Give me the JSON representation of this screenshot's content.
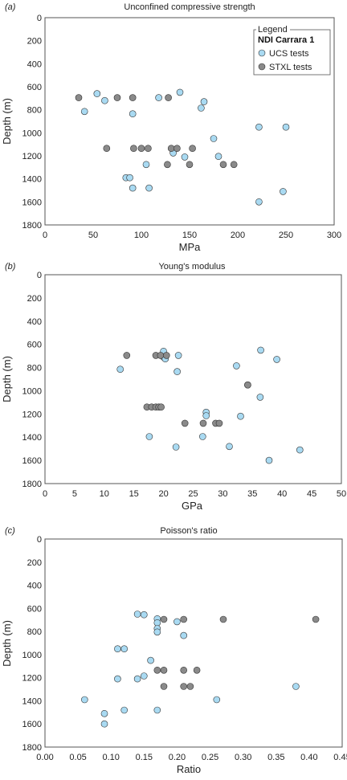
{
  "legend": {
    "title": "Legend",
    "heading": "NDI Carrara 1",
    "items": [
      {
        "label": "UCS tests",
        "color": "#a9daf2"
      },
      {
        "label": "STXL tests",
        "color": "#8a8a8a"
      }
    ]
  },
  "chart_data": [
    {
      "type": "scatter",
      "panel_label": "(a)",
      "title": "Unconfined compressive strength",
      "xlabel": "MPa",
      "ylabel": "Depth (m)",
      "xlim": [
        0,
        300
      ],
      "ylim": [
        0,
        1800
      ],
      "y_inverted": true,
      "xticks": [
        "0",
        "50",
        "100",
        "150",
        "200",
        "250",
        "300"
      ],
      "yticks": [
        "0",
        "200",
        "400",
        "600",
        "800",
        "1000",
        "1200",
        "1400",
        "1600",
        "1800"
      ],
      "series": [
        {
          "name": "UCS tests",
          "color": "#a9daf2",
          "points": [
            [
              54,
              660
            ],
            [
              62,
              720
            ],
            [
              41,
              815
            ],
            [
              91,
              835
            ],
            [
              118,
              695
            ],
            [
              140,
              648
            ],
            [
              165,
              730
            ],
            [
              162,
              785
            ],
            [
              222,
              950
            ],
            [
              250,
              950
            ],
            [
              175,
              1050
            ],
            [
              133,
              1175
            ],
            [
              145,
              1210
            ],
            [
              180,
              1205
            ],
            [
              105,
              1275
            ],
            [
              84,
              1390
            ],
            [
              88,
              1390
            ],
            [
              91,
              1480
            ],
            [
              108,
              1480
            ],
            [
              247,
              1510
            ],
            [
              222,
              1600
            ]
          ]
        },
        {
          "name": "STXL tests",
          "color": "#8a8a8a",
          "points": [
            [
              35,
              695
            ],
            [
              75,
              695
            ],
            [
              91,
              695
            ],
            [
              128,
              695
            ],
            [
              64,
              1135
            ],
            [
              92,
              1135
            ],
            [
              100,
              1135
            ],
            [
              107,
              1135
            ],
            [
              131,
              1135
            ],
            [
              137,
              1135
            ],
            [
              153,
              1135
            ],
            [
              127,
              1275
            ],
            [
              150,
              1275
            ],
            [
              185,
              1275
            ],
            [
              196,
              1275
            ]
          ]
        }
      ]
    },
    {
      "type": "scatter",
      "panel_label": "(b)",
      "title": "Young's modulus",
      "xlabel": "GPa",
      "ylabel": "Depth (m)",
      "xlim": [
        0,
        50
      ],
      "ylim": [
        0,
        1800
      ],
      "y_inverted": true,
      "xticks": [
        "0",
        "5",
        "10",
        "15",
        "20",
        "25",
        "30",
        "35",
        "40",
        "45",
        "50"
      ],
      "yticks": [
        "0",
        "200",
        "400",
        "600",
        "800",
        "1000",
        "1200",
        "1400",
        "1600",
        "1800"
      ],
      "series": [
        {
          "name": "UCS tests",
          "color": "#a9daf2",
          "points": [
            [
              20,
              660
            ],
            [
              22.5,
              695
            ],
            [
              20,
              710
            ],
            [
              20.3,
              725
            ],
            [
              12.7,
              815
            ],
            [
              22.3,
              835
            ],
            [
              36.4,
              650
            ],
            [
              39.1,
              730
            ],
            [
              32.3,
              785
            ],
            [
              34.2,
              950
            ],
            [
              36.3,
              1055
            ],
            [
              27.2,
              1185
            ],
            [
              27.2,
              1215
            ],
            [
              33,
              1220
            ],
            [
              17.6,
              1395
            ],
            [
              26.6,
              1395
            ],
            [
              22.1,
              1485
            ],
            [
              31.1,
              1480
            ],
            [
              43,
              1510
            ],
            [
              37.8,
              1600
            ]
          ]
        },
        {
          "name": "STXL tests",
          "color": "#8a8a8a",
          "points": [
            [
              13.8,
              695
            ],
            [
              18.7,
              695
            ],
            [
              19.5,
              695
            ],
            [
              20.5,
              695
            ],
            [
              17.2,
              1140
            ],
            [
              18,
              1140
            ],
            [
              18.7,
              1140
            ],
            [
              19.2,
              1140
            ],
            [
              19.6,
              1140
            ],
            [
              34.2,
              950
            ],
            [
              23.6,
              1280
            ],
            [
              28.8,
              1280
            ],
            [
              29.4,
              1280
            ],
            [
              26.7,
              1280
            ]
          ]
        }
      ]
    },
    {
      "type": "scatter",
      "panel_label": "(c)",
      "title": "Poisson's ratio",
      "xlabel": "Ratio",
      "ylabel": "Depth (m)",
      "xlim": [
        0,
        0.45
      ],
      "ylim": [
        0,
        1800
      ],
      "y_inverted": true,
      "xticks": [
        "0.00",
        "0.05",
        "0.10",
        "0.15",
        "0.20",
        "0.25",
        "0.30",
        "0.35",
        "0.40",
        "0.45"
      ],
      "yticks": [
        "0",
        "200",
        "400",
        "600",
        "800",
        "1000",
        "1200",
        "1400",
        "1600",
        "1800"
      ],
      "series": [
        {
          "name": "UCS tests",
          "color": "#a9daf2",
          "points": [
            [
              0.14,
              650
            ],
            [
              0.15,
              655
            ],
            [
              0.17,
              690
            ],
            [
              0.17,
              725
            ],
            [
              0.2,
              715
            ],
            [
              0.17,
              775
            ],
            [
              0.17,
              805
            ],
            [
              0.21,
              835
            ],
            [
              0.11,
              950
            ],
            [
              0.12,
              950
            ],
            [
              0.16,
              1050
            ],
            [
              0.11,
              1210
            ],
            [
              0.14,
              1210
            ],
            [
              0.15,
              1185
            ],
            [
              0.06,
              1390
            ],
            [
              0.26,
              1390
            ],
            [
              0.12,
              1480
            ],
            [
              0.17,
              1480
            ],
            [
              0.09,
              1510
            ],
            [
              0.09,
              1600
            ],
            [
              0.38,
              1275
            ]
          ]
        },
        {
          "name": "STXL tests",
          "color": "#8a8a8a",
          "points": [
            [
              0.18,
              695
            ],
            [
              0.21,
              695
            ],
            [
              0.27,
              695
            ],
            [
              0.41,
              695
            ],
            [
              0.17,
              1135
            ],
            [
              0.18,
              1135
            ],
            [
              0.21,
              1135
            ],
            [
              0.23,
              1135
            ],
            [
              0.18,
              1275
            ],
            [
              0.21,
              1275
            ],
            [
              0.22,
              1275
            ]
          ]
        }
      ]
    }
  ]
}
